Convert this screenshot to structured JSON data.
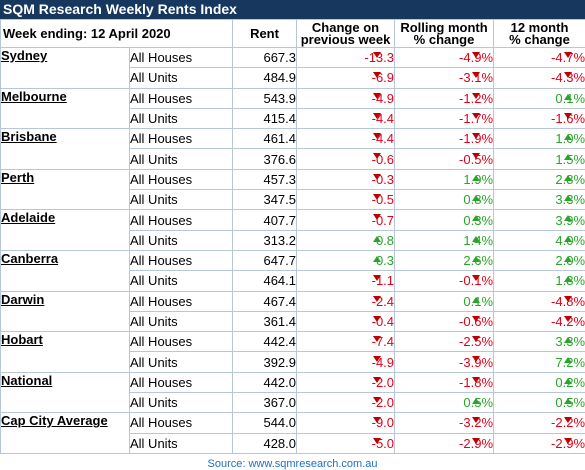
{
  "title": "SQM Research Weekly Rents Index",
  "header": {
    "week_label": "Week ending:",
    "week_date": "12 April 2020",
    "rent": "Rent",
    "change_week": [
      "Change on",
      "previous week"
    ],
    "rolling_month": [
      "Rolling month",
      "% change"
    ],
    "twelve_month": [
      "12 month",
      "% change"
    ]
  },
  "cities": [
    {
      "name": "Sydney",
      "rows": [
        {
          "type": "All Houses",
          "rent": "667.3",
          "week": "-13.3",
          "month": "-4.9%",
          "year": "-4.7%"
        },
        {
          "type": "All Units",
          "rent": "484.9",
          "week": "-6.9",
          "month": "-3.1%",
          "year": "-4.3%"
        }
      ]
    },
    {
      "name": "Melbourne",
      "rows": [
        {
          "type": "All Houses",
          "rent": "543.9",
          "week": "-4.9",
          "month": "-1.2%",
          "year": "0.1%"
        },
        {
          "type": "All Units",
          "rent": "415.4",
          "week": "-4.4",
          "month": "-1.7%",
          "year": "-1.6%"
        }
      ]
    },
    {
      "name": "Brisbane",
      "rows": [
        {
          "type": "All Houses",
          "rent": "461.4",
          "week": "-4.4",
          "month": "-1.9%",
          "year": "1.0%"
        },
        {
          "type": "All Units",
          "rent": "376.6",
          "week": "-0.6",
          "month": "-0.5%",
          "year": "1.5%"
        }
      ]
    },
    {
      "name": "Perth",
      "rows": [
        {
          "type": "All Houses",
          "rent": "457.3",
          "week": "-0.3",
          "month": "1.9%",
          "year": "2.8%"
        },
        {
          "type": "All Units",
          "rent": "347.5",
          "week": "-0.5",
          "month": "0.8%",
          "year": "3.3%"
        }
      ]
    },
    {
      "name": "Adelaide",
      "rows": [
        {
          "type": "All Houses",
          "rent": "407.7",
          "week": "-0.7",
          "month": "0.3%",
          "year": "3.9%"
        },
        {
          "type": "All Units",
          "rent": "313.2",
          "week": "0.8",
          "month": "1.4%",
          "year": "4.0%"
        }
      ]
    },
    {
      "name": "Canberra",
      "rows": [
        {
          "type": "All Houses",
          "rent": "647.7",
          "week": "0.3",
          "month": "2.6%",
          "year": "2.0%"
        },
        {
          "type": "All Units",
          "rent": "464.1",
          "week": "-1.1",
          "month": "-0.1%",
          "year": "1.8%"
        }
      ]
    },
    {
      "name": "Darwin",
      "rows": [
        {
          "type": "All Houses",
          "rent": "467.4",
          "week": "-2.4",
          "month": "0.1%",
          "year": "-4.8%"
        },
        {
          "type": "All Units",
          "rent": "361.4",
          "week": "-0.4",
          "month": "-0.6%",
          "year": "-4.2%"
        }
      ]
    },
    {
      "name": "Hobart",
      "rows": [
        {
          "type": "All Houses",
          "rent": "442.4",
          "week": "-7.4",
          "month": "-2.5%",
          "year": "3.3%"
        },
        {
          "type": "All Units",
          "rent": "392.9",
          "week": "-4.9",
          "month": "-3.9%",
          "year": "7.2%"
        }
      ]
    },
    {
      "name": "National",
      "rows": [
        {
          "type": "All Houses",
          "rent": "442.0",
          "week": "-2.0",
          "month": "-1.8%",
          "year": "0.2%"
        },
        {
          "type": "All Units",
          "rent": "367.0",
          "week": "-2.0",
          "month": "0.5%",
          "year": "0.5%"
        }
      ]
    },
    {
      "name": "Cap City Average",
      "rows": [
        {
          "type": "All Houses",
          "rent": "544.0",
          "week": "-9.0",
          "month": "-3.2%",
          "year": "-2.2%"
        },
        {
          "type": "All Units",
          "rent": "428.0",
          "week": "-5.0",
          "month": "-2.9%",
          "year": "-2.9%"
        }
      ]
    }
  ],
  "source": "Source: www.sqmresearch.com.au",
  "colors": {
    "title_bg": "#17375e",
    "link": "#1f6fc5",
    "negative": "#e3001b",
    "positive": "#2aa42a"
  }
}
